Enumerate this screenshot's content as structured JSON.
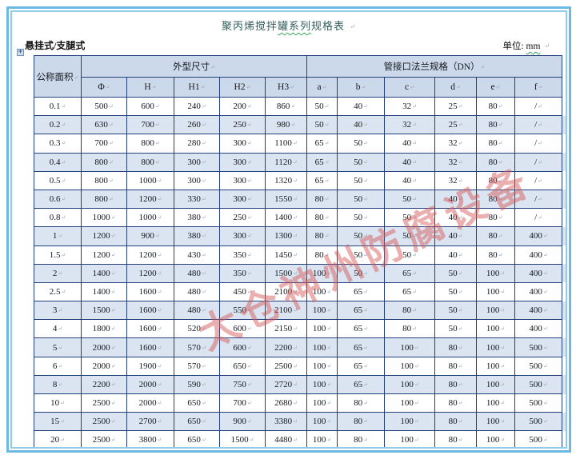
{
  "page": {
    "title_pre": "聚丙烯搅拌",
    "title_marked": "罐系列",
    "title_post": "规格表",
    "subtitle_left": "悬挂式/支腿式",
    "unit_pre": "单位: ",
    "unit_marked": "mm",
    "watermark": "太仓神州防腐设备",
    "move_handle_glyph": "+"
  },
  "table": {
    "header_groups": [
      {
        "label": "公称面积",
        "colspan": 1,
        "rowspan": 2
      },
      {
        "label": "外型尺寸",
        "colspan": 5,
        "rowspan": 1
      },
      {
        "label": "管接口法兰规格（DN）",
        "colspan": 6,
        "rowspan": 1
      }
    ],
    "sub_headers": [
      "Φ",
      "H",
      "H1",
      "H2",
      "H3",
      "a",
      "b",
      "c",
      "d",
      "e",
      "f"
    ],
    "rows": [
      [
        "0.1",
        "500",
        "600",
        "240",
        "200",
        "860",
        "50",
        "40",
        "32",
        "25",
        "80",
        "/"
      ],
      [
        "0.2",
        "630",
        "700",
        "260",
        "250",
        "980",
        "50",
        "40",
        "32",
        "25",
        "80",
        "/"
      ],
      [
        "0.3",
        "700",
        "800",
        "280",
        "300",
        "1100",
        "65",
        "50",
        "40",
        "32",
        "80",
        "/"
      ],
      [
        "0.4",
        "800",
        "800",
        "300",
        "300",
        "1120",
        "65",
        "50",
        "40",
        "32",
        "80",
        "/"
      ],
      [
        "0.5",
        "800",
        "1000",
        "300",
        "300",
        "1320",
        "65",
        "50",
        "40",
        "32",
        "80",
        "/"
      ],
      [
        "0.6",
        "800",
        "1200",
        "330",
        "300",
        "1550",
        "80",
        "50",
        "50",
        "40",
        "80",
        "/"
      ],
      [
        "0.8",
        "1000",
        "1000",
        "380",
        "250",
        "1400",
        "80",
        "50",
        "50",
        "40",
        "80",
        "/"
      ],
      [
        "1",
        "1200",
        "900",
        "380",
        "300",
        "1300",
        "80",
        "50",
        "50",
        "40",
        "80",
        "400"
      ],
      [
        "1.5",
        "1200",
        "1200",
        "430",
        "350",
        "1450",
        "80",
        "50",
        "50",
        "40",
        "80",
        "400"
      ],
      [
        "2",
        "1400",
        "1200",
        "480",
        "350",
        "1500",
        "100",
        "50",
        "65",
        "50",
        "100",
        "400"
      ],
      [
        "2.5",
        "1400",
        "1600",
        "480",
        "450",
        "2100",
        "100",
        "65",
        "65",
        "50",
        "100",
        "400"
      ],
      [
        "3",
        "1500",
        "1600",
        "480",
        "550",
        "2100",
        "100",
        "65",
        "80",
        "50",
        "100",
        "400"
      ],
      [
        "4",
        "1800",
        "1600",
        "520",
        "600",
        "2150",
        "100",
        "65",
        "80",
        "50",
        "100",
        "400"
      ],
      [
        "5",
        "2000",
        "1600",
        "570",
        "600",
        "2200",
        "100",
        "65",
        "100",
        "80",
        "100",
        "500"
      ],
      [
        "6",
        "2000",
        "1900",
        "570",
        "650",
        "2500",
        "100",
        "65",
        "100",
        "80",
        "100",
        "500"
      ],
      [
        "8",
        "2200",
        "2000",
        "590",
        "750",
        "2720",
        "100",
        "65",
        "100",
        "80",
        "100",
        "500"
      ],
      [
        "10",
        "2500",
        "2000",
        "650",
        "700",
        "2680",
        "100",
        "80",
        "100",
        "80",
        "100",
        "500"
      ],
      [
        "15",
        "2500",
        "2700",
        "650",
        "900",
        "3380",
        "100",
        "80",
        "100",
        "80",
        "100",
        "500"
      ],
      [
        "20",
        "2500",
        "3800",
        "650",
        "1500",
        "4480",
        "100",
        "80",
        "100",
        "80",
        "100",
        "500"
      ]
    ]
  },
  "colors": {
    "border_color": "#24407c",
    "header_fill": "#ccd9ea",
    "band_fill": "#dbe5f1",
    "frame_outer": "#6db9e6",
    "frame_inner": "#8fccec",
    "title_color": "#355e5e",
    "squiggle_color": "#3aa655",
    "watermark_color": "rgba(214,88,88,0.48)"
  }
}
